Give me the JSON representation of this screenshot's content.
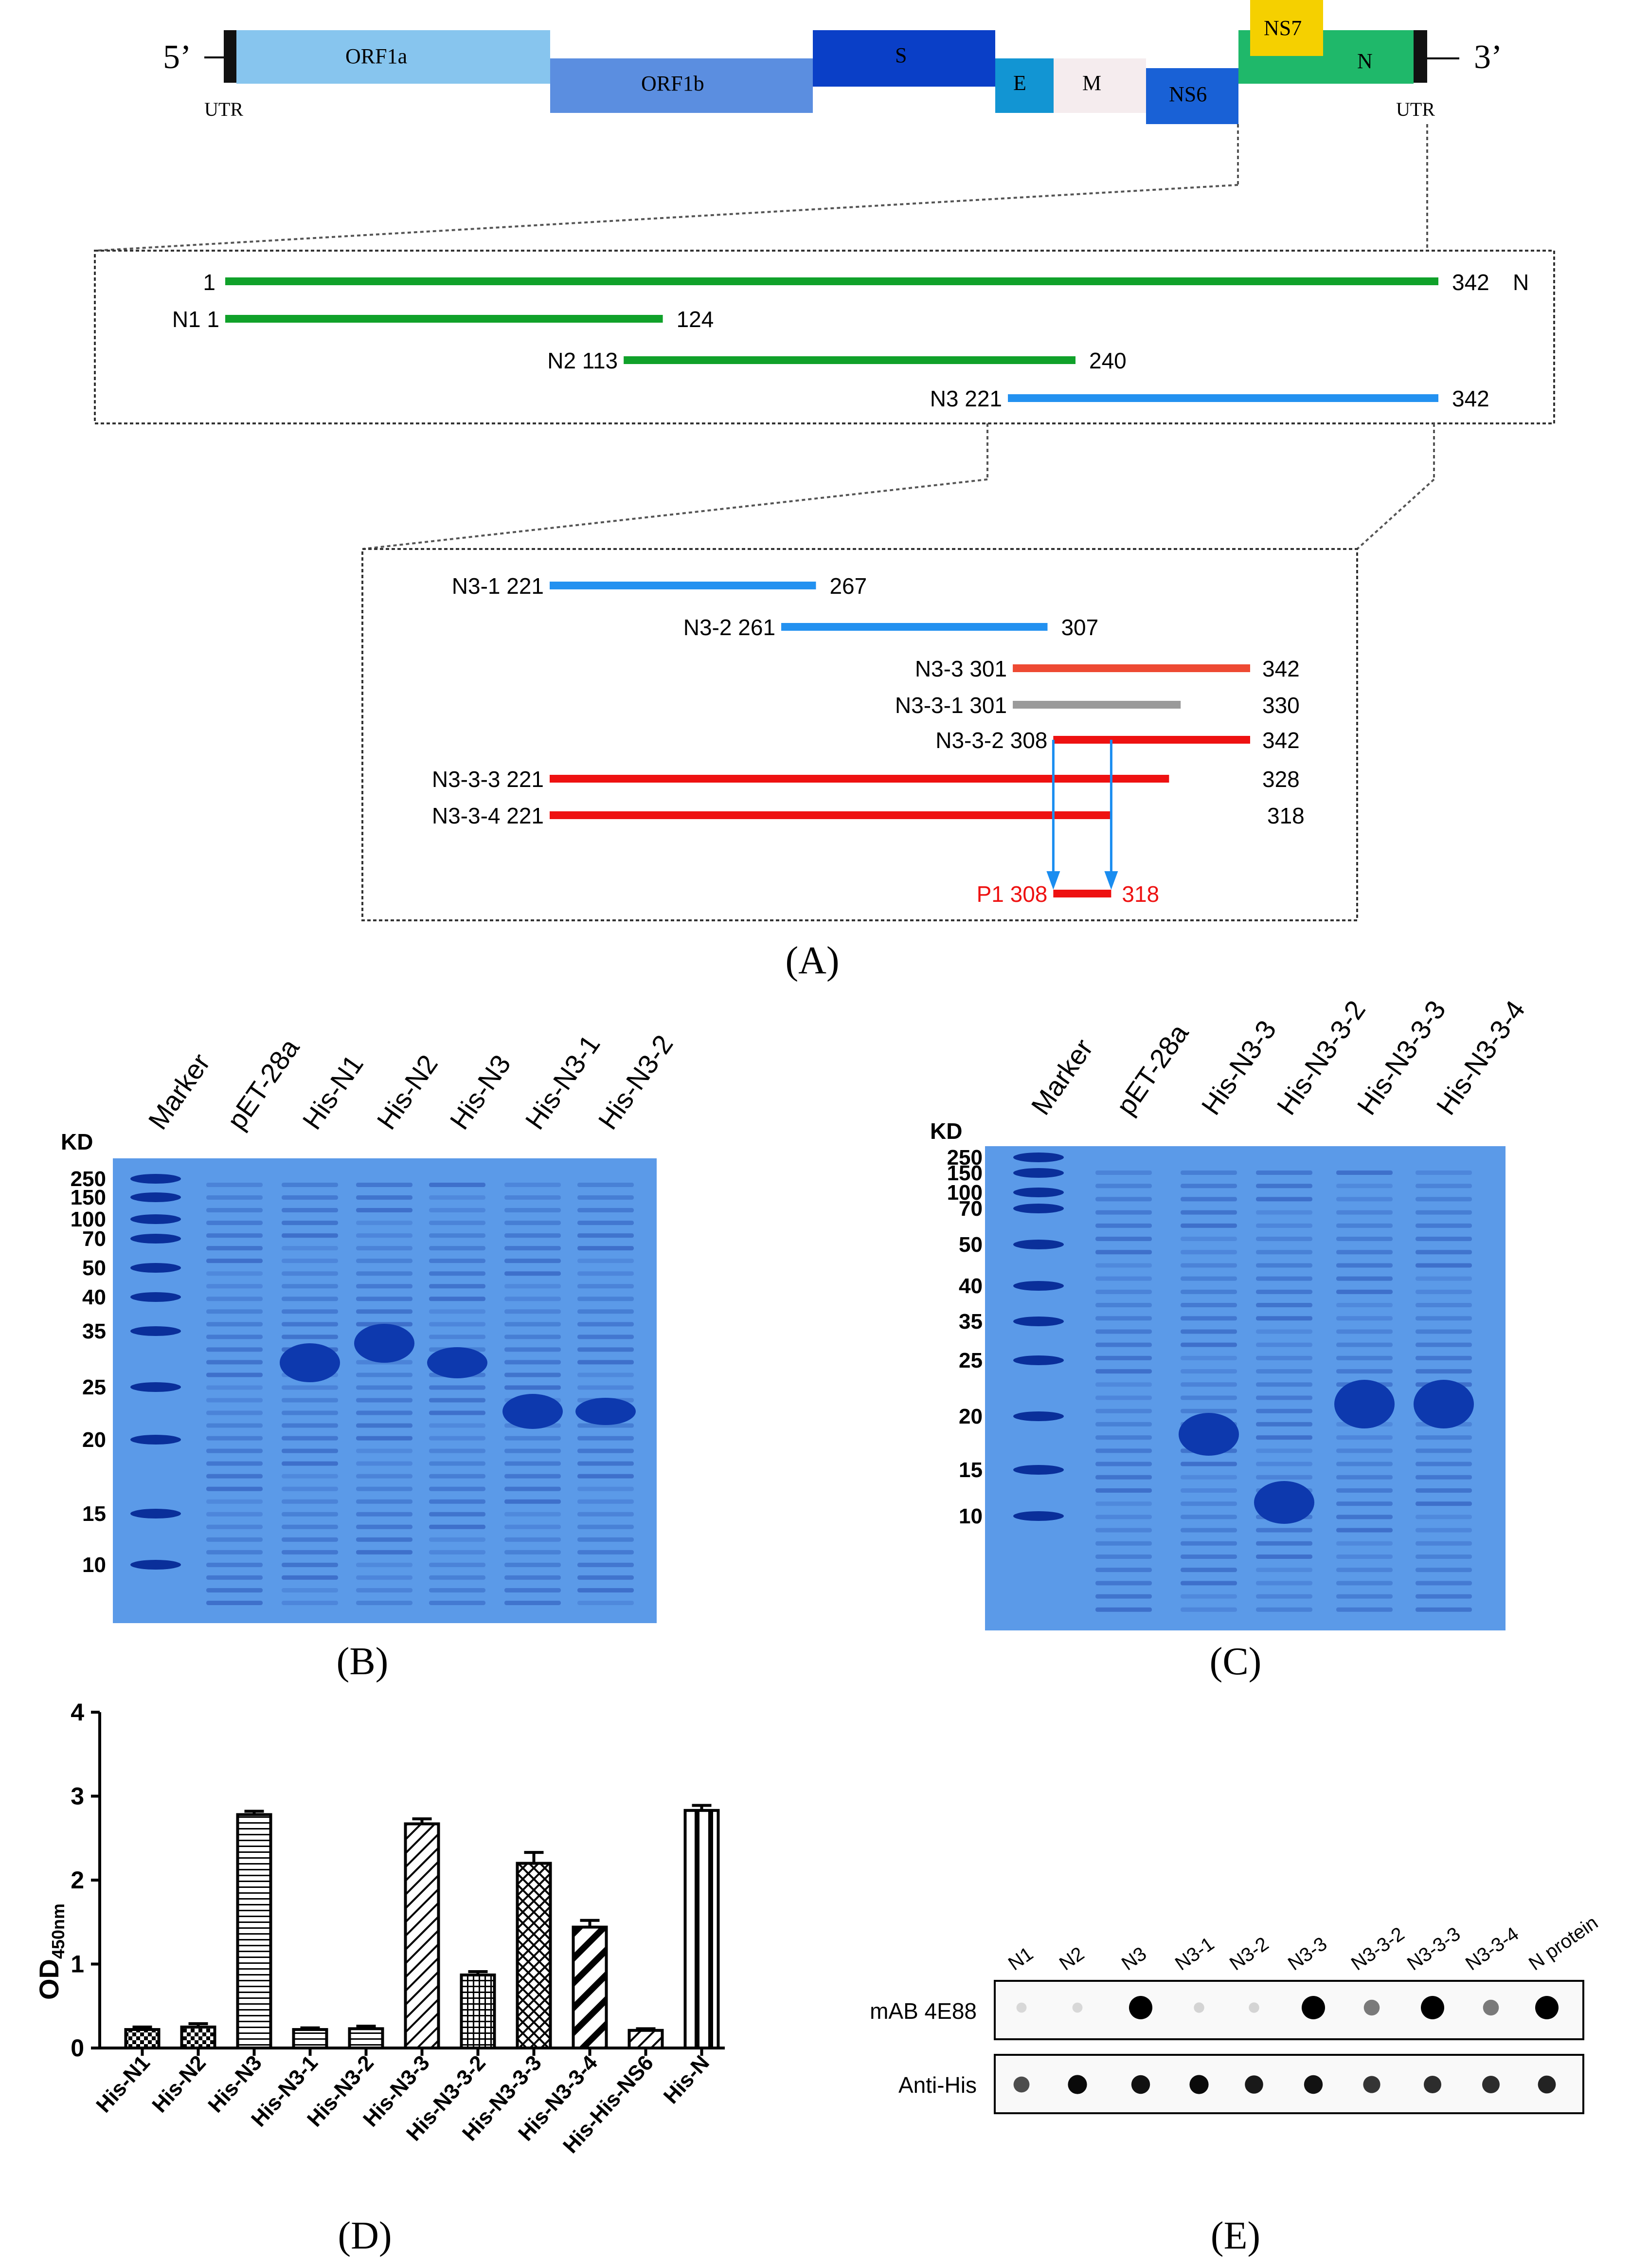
{
  "panel_a": {
    "label": "(A)",
    "genome": {
      "five_prime": "5’",
      "three_prime": "3’",
      "utr_left": "UTR",
      "utr_right": "UTR",
      "genes": [
        "ORF1a",
        "ORF1b",
        "S",
        "E",
        "M",
        "NS6",
        "NS7",
        "N"
      ],
      "colors": {
        "ORF1a": "#87c5ee",
        "ORF1b": "#5b8ee0",
        "S": "#0a3fc7",
        "E": "#1295d3",
        "M": "#f5ecee",
        "NS6": "#1961d6",
        "NS7": "#f5d000",
        "N": "#1fb86a",
        "UTR": "#111111"
      }
    },
    "level1": {
      "full": {
        "name": "",
        "start": "1",
        "end": "342",
        "tag": "N",
        "color": "#10a12a"
      },
      "fragments": [
        {
          "name": "N1",
          "start": "1",
          "end": "124",
          "color": "#10a12a"
        },
        {
          "name": "N2",
          "start": "113",
          "end": "240",
          "color": "#10a12a"
        },
        {
          "name": "N3",
          "start": "221",
          "end": "342",
          "color": "#2391f0"
        }
      ]
    },
    "level2": {
      "fragments": [
        {
          "name": "N3-1",
          "start": "221",
          "end": "267",
          "color": "#2391f0"
        },
        {
          "name": "N3-2",
          "start": "261",
          "end": "307",
          "color": "#2391f0"
        },
        {
          "name": "N3-3",
          "start": "301",
          "end": "342",
          "color": "#ee4a33"
        },
        {
          "name": "N3-3-1",
          "start": "301",
          "end": "330",
          "color": "#9a9a9a"
        },
        {
          "name": "N3-3-2",
          "start": "308",
          "end": "342",
          "color": "#ee1111"
        },
        {
          "name": "N3-3-3",
          "start": "221",
          "end": "328",
          "color": "#ee1111"
        },
        {
          "name": "N3-3-4",
          "start": "221",
          "end": "318",
          "color": "#ee1111"
        }
      ],
      "peptide": {
        "name": "P1",
        "start": "308",
        "end": "318",
        "color": "#ee1111"
      },
      "arrow_color": "#1a8df0"
    }
  },
  "panel_b": {
    "label": "(B)",
    "unit": "KD",
    "markers": [
      "250",
      "150",
      "100",
      "70",
      "50",
      "40",
      "35",
      "25",
      "20",
      "15",
      "10"
    ],
    "lanes": [
      "Marker",
      "pET-28a",
      "His-N1",
      "His-N2",
      "His-N3",
      "His-N3-1",
      "His-N3-2"
    ]
  },
  "panel_c": {
    "label": "(C)",
    "unit": "KD",
    "markers": [
      "250",
      "150",
      "100",
      "70",
      "50",
      "40",
      "35",
      "25",
      "20",
      "15",
      "10"
    ],
    "lanes": [
      "Marker",
      "pET-28a",
      "His-N3-3",
      "His-N3-3-2",
      "His-N3-3-3",
      "His-N3-3-4"
    ]
  },
  "panel_d": {
    "label": "(D)",
    "chart_data": {
      "type": "bar",
      "ylabel": "OD450nm",
      "ylabel_main": "OD",
      "ylabel_sub": "450nm",
      "ylim": [
        0,
        4
      ],
      "yticks": [
        "0",
        "1",
        "2",
        "3",
        "4"
      ],
      "categories": [
        "His-N1",
        "His-N2",
        "His-N3",
        "His-N3-1",
        "His-N3-2",
        "His-N3-3",
        "His-N3-3-2",
        "His-N3-3-3",
        "His-N3-3-4",
        "His-His-NS6",
        "His-N"
      ],
      "values": [
        0.22,
        0.25,
        2.78,
        0.22,
        0.23,
        2.67,
        0.87,
        2.2,
        1.44,
        0.21,
        2.83
      ],
      "errors": [
        0.03,
        0.04,
        0.04,
        0.02,
        0.03,
        0.06,
        0.04,
        0.13,
        0.08,
        0.02,
        0.06
      ],
      "patterns": [
        "checker",
        "checker",
        "hlines",
        "hlines",
        "hlines",
        "diag",
        "grid",
        "crossdiag",
        "bigdiag",
        "diag",
        "vlines"
      ]
    }
  },
  "panel_e": {
    "label": "(E)",
    "columns": [
      "N1",
      "N2",
      "N3",
      "N3-1",
      "N3-2",
      "N3-3",
      "N3-3-2",
      "N3-3-3",
      "N3-3-4",
      "N protein"
    ],
    "rows": [
      "mAB 4E88",
      "Anti-His"
    ],
    "mab_intensity": [
      0.03,
      0.03,
      1.0,
      0.05,
      0.05,
      1.0,
      0.45,
      1.0,
      0.45,
      1.0
    ],
    "his_intensity": [
      0.55,
      0.95,
      0.9,
      0.95,
      0.85,
      0.9,
      0.7,
      0.75,
      0.75,
      0.8
    ]
  }
}
